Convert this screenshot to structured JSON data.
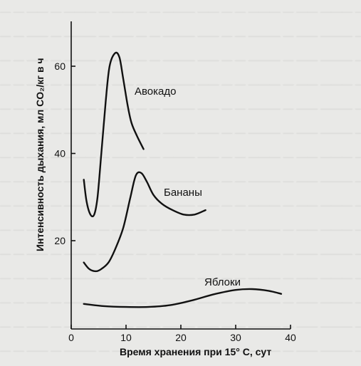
{
  "chart_data": {
    "type": "line",
    "xlabel": "Время хранения при 15° С, сут",
    "ylabel": "Интенсивность дыхания, мл CO₂/кг в ч",
    "xlim": [
      0,
      40
    ],
    "ylim": [
      0,
      70
    ],
    "x_ticks": [
      "0",
      "10",
      "20",
      "30",
      "40"
    ],
    "y_ticks": [
      "20",
      "40",
      "60"
    ],
    "x_tick_values": [
      0,
      10,
      20,
      30,
      40
    ],
    "y_tick_values": [
      20,
      40,
      60
    ],
    "grid": false,
    "series": [
      {
        "name": "Авокадо",
        "x": [
          2.3,
          2.8,
          3.5,
          4.2,
          4.8,
          5.5,
          6.3,
          7.0,
          8.0,
          8.8,
          9.5,
          10.3,
          11.0,
          12.0,
          13.2
        ],
        "y": [
          34,
          29,
          26,
          26,
          30,
          40,
          52,
          60,
          63,
          62,
          57,
          51,
          47,
          44,
          41
        ]
      },
      {
        "name": "Бананы",
        "x": [
          2.3,
          3.3,
          4.5,
          5.5,
          6.8,
          8.0,
          9.5,
          10.8,
          11.8,
          12.8,
          13.8,
          15.0,
          16.5,
          18.5,
          20.5,
          22.5,
          24.5
        ],
        "y": [
          15,
          13.5,
          13,
          13.5,
          15,
          18,
          23,
          30,
          35,
          35.5,
          33.5,
          30.5,
          28.5,
          27,
          26,
          26,
          27
        ]
      },
      {
        "name": "Яблоки",
        "x": [
          2.3,
          6,
          10,
          14,
          18,
          22,
          26,
          30,
          33,
          36,
          38.3
        ],
        "y": [
          5.5,
          5,
          4.8,
          4.8,
          5.2,
          6.3,
          7.7,
          8.7,
          8.9,
          8.5,
          7.8
        ]
      }
    ]
  }
}
